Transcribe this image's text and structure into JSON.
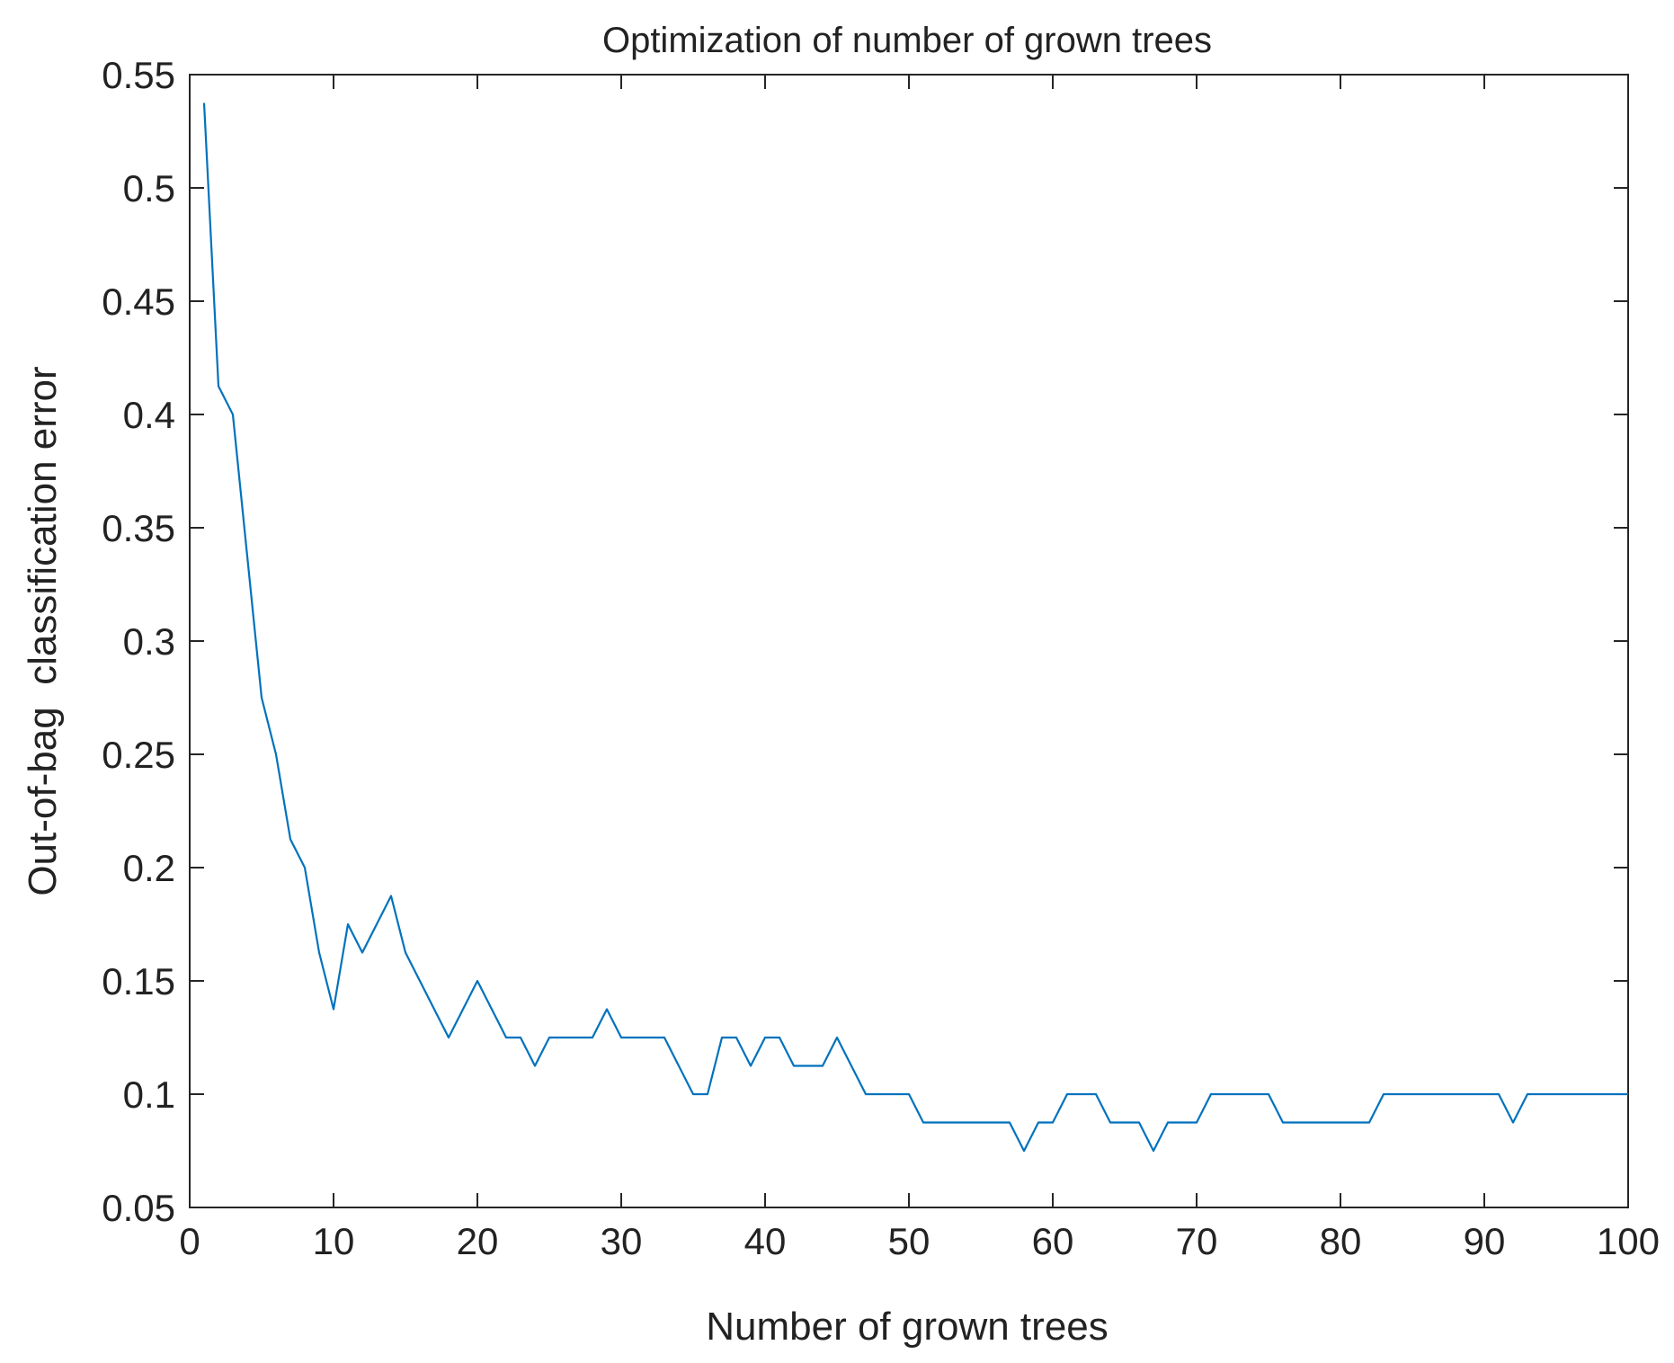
{
  "chart_data": {
    "type": "line",
    "title": "Optimization of number of grown trees",
    "xlabel": "Number of grown trees",
    "ylabel": "Out-of-bag  classification error",
    "xlim": [
      0,
      100
    ],
    "ylim": [
      0.05,
      0.55
    ],
    "xticks": [
      0,
      10,
      20,
      30,
      40,
      50,
      60,
      70,
      80,
      90,
      100
    ],
    "xtick_labels": [
      "0",
      "10",
      "20",
      "30",
      "40",
      "50",
      "60",
      "70",
      "80",
      "90",
      "100"
    ],
    "yticks": [
      0.05,
      0.1,
      0.15,
      0.2,
      0.25,
      0.3,
      0.35,
      0.4,
      0.45,
      0.5,
      0.55
    ],
    "ytick_labels": [
      "0.05",
      "0.1",
      "0.15",
      "0.2",
      "0.25",
      "0.3",
      "0.35",
      "0.4",
      "0.45",
      "0.5",
      "0.55"
    ],
    "grid": false,
    "line_color": "#0072BD",
    "series": [
      {
        "x": [
          1,
          2,
          3,
          4,
          5,
          6,
          7,
          8,
          9,
          10,
          11,
          12,
          13,
          14,
          15,
          16,
          17,
          18,
          19,
          20,
          21,
          22,
          23,
          24,
          25,
          26,
          27,
          28,
          29,
          30,
          31,
          32,
          33,
          34,
          35,
          36,
          37,
          38,
          39,
          40,
          41,
          42,
          43,
          44,
          45,
          46,
          47,
          48,
          49,
          50,
          51,
          52,
          53,
          54,
          55,
          56,
          57,
          58,
          59,
          60,
          61,
          62,
          63,
          64,
          65,
          66,
          67,
          68,
          69,
          70,
          71,
          72,
          73,
          74,
          75,
          76,
          77,
          78,
          79,
          80,
          81,
          82,
          83,
          84,
          85,
          86,
          87,
          88,
          89,
          90,
          91,
          92,
          93,
          94,
          95,
          96,
          97,
          98,
          99,
          100
        ],
        "values": [
          0.5375,
          0.4125,
          0.4,
          0.3375,
          0.275,
          0.25,
          0.2125,
          0.2,
          0.1625,
          0.1375,
          0.175,
          0.1625,
          0.175,
          0.1875,
          0.1625,
          0.15,
          0.1375,
          0.125,
          0.1375,
          0.15,
          0.1375,
          0.125,
          0.125,
          0.1125,
          0.125,
          0.125,
          0.125,
          0.125,
          0.1375,
          0.125,
          0.125,
          0.125,
          0.125,
          0.1125,
          0.1,
          0.1,
          0.125,
          0.125,
          0.1125,
          0.125,
          0.125,
          0.1125,
          0.1125,
          0.1125,
          0.125,
          0.1125,
          0.1,
          0.1,
          0.1,
          0.1,
          0.0875,
          0.0875,
          0.0875,
          0.0875,
          0.0875,
          0.0875,
          0.0875,
          0.075,
          0.0875,
          0.0875,
          0.1,
          0.1,
          0.1,
          0.0875,
          0.0875,
          0.0875,
          0.075,
          0.0875,
          0.0875,
          0.0875,
          0.1,
          0.1,
          0.1,
          0.1,
          0.1,
          0.0875,
          0.0875,
          0.0875,
          0.0875,
          0.0875,
          0.0875,
          0.0875,
          0.1,
          0.1,
          0.1,
          0.1,
          0.1,
          0.1,
          0.1,
          0.1,
          0.1,
          0.0875,
          0.1,
          0.1,
          0.1,
          0.1,
          0.1,
          0.1,
          0.1,
          0.1
        ]
      }
    ]
  }
}
